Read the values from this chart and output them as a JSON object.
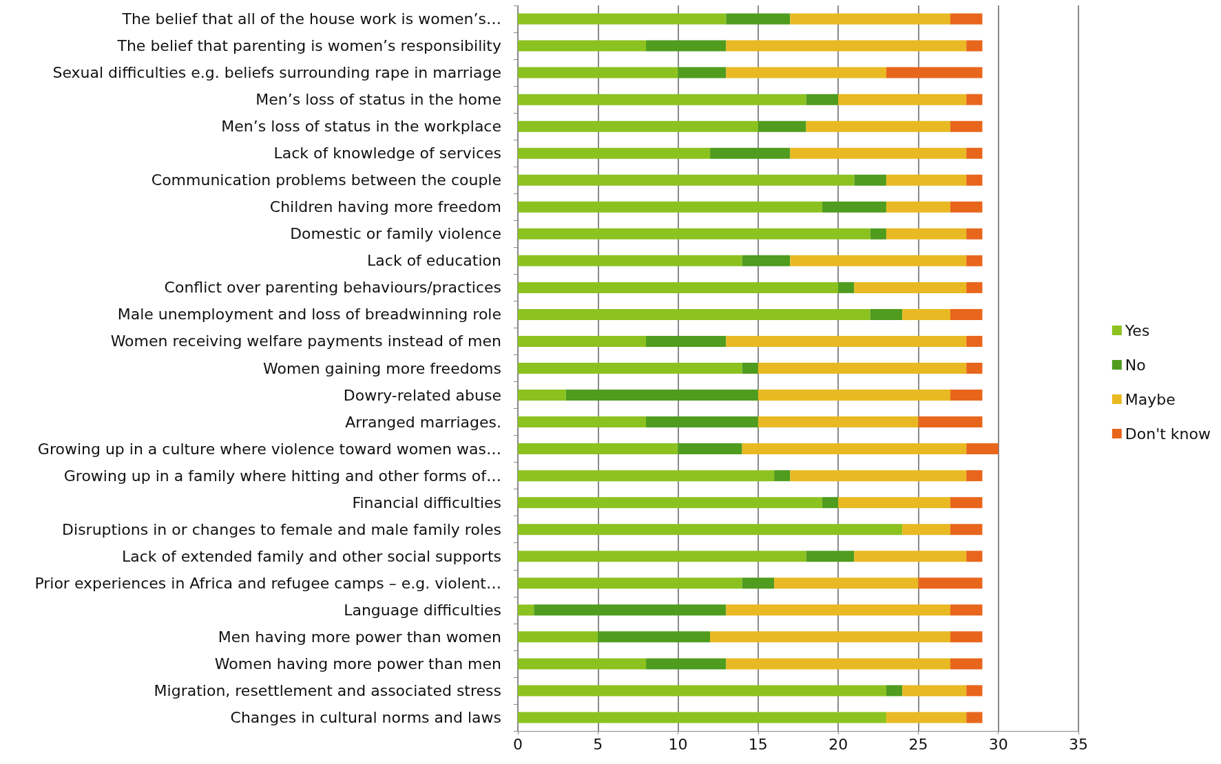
{
  "chart_data": {
    "type": "bar",
    "orientation": "horizontal",
    "stacked": true,
    "categories": [
      "The belief that all of the house work is women’s…",
      "The belief that parenting is women’s responsibility",
      "Sexual difficulties e.g. beliefs surrounding rape in marriage",
      "Men’s loss of status in the home",
      "Men’s loss of status in the workplace",
      "Lack of knowledge of services",
      "Communication problems between the couple",
      "Children having more freedom",
      "Domestic or family violence",
      "Lack of education",
      "Conflict over parenting behaviours/practices",
      "Male unemployment and loss of breadwinning role",
      "Women receiving welfare payments instead of men",
      "Women gaining more freedoms",
      "Dowry-related abuse",
      "Arranged marriages.",
      "Growing up in a culture where violence toward women was…",
      "Growing up in a family where hitting and other forms of…",
      "Financial difficulties",
      "Disruptions in or changes to female and male family roles",
      "Lack of extended family and other social supports",
      "Prior experiences in Africa and refugee camps – e.g. violent…",
      "Language difficulties",
      "Men having more power than women",
      "Women having more power than men",
      "Migration, resettlement and associated stress",
      "Changes in cultural norms and laws"
    ],
    "series": [
      {
        "name": "Yes",
        "color": "#8cc21f",
        "values": [
          13,
          8,
          10,
          18,
          15,
          12,
          21,
          19,
          22,
          14,
          20,
          22,
          8,
          14,
          3,
          8,
          10,
          16,
          19,
          24,
          18,
          14,
          1,
          5,
          8,
          23,
          23
        ]
      },
      {
        "name": "No",
        "color": "#4f9c1e",
        "values": [
          4,
          5,
          3,
          2,
          3,
          5,
          2,
          4,
          1,
          3,
          1,
          2,
          5,
          1,
          12,
          7,
          4,
          1,
          1,
          0,
          3,
          2,
          12,
          7,
          5,
          1,
          0
        ]
      },
      {
        "name": "Maybe",
        "color": "#e8b922",
        "values": [
          10,
          15,
          10,
          8,
          9,
          11,
          5,
          4,
          5,
          11,
          7,
          3,
          15,
          13,
          12,
          10,
          14,
          11,
          7,
          3,
          7,
          9,
          14,
          15,
          14,
          4,
          5
        ]
      },
      {
        "name": "Don't know",
        "color": "#e8661c",
        "values": [
          2,
          1,
          6,
          1,
          2,
          1,
          1,
          2,
          1,
          1,
          1,
          2,
          1,
          1,
          2,
          4,
          2,
          1,
          2,
          2,
          1,
          4,
          2,
          2,
          2,
          1,
          1
        ]
      }
    ],
    "xlim": [
      0,
      35
    ],
    "xticks": [
      0,
      5,
      10,
      15,
      20,
      25,
      30,
      35
    ],
    "grid": "x",
    "legend": "right"
  }
}
